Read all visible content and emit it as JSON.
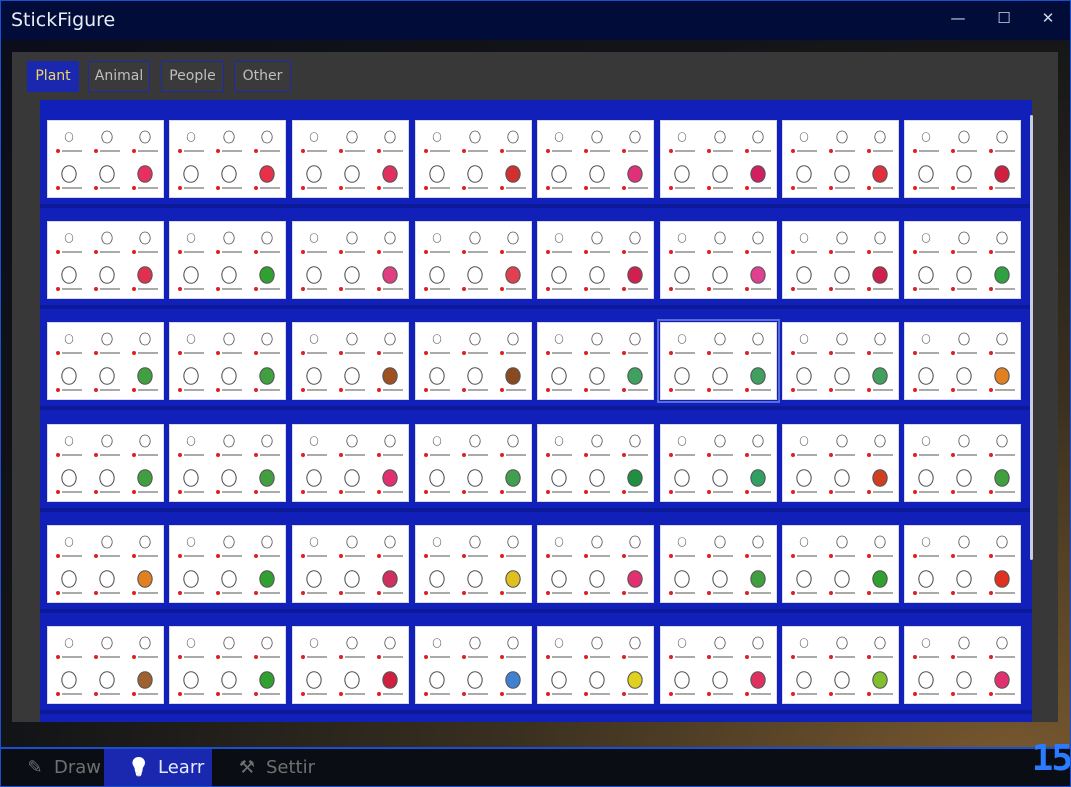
{
  "window": {
    "title": "StickFigure",
    "minimize_icon": "—",
    "maximize_icon": "☐",
    "close_icon": "✕"
  },
  "categories": [
    {
      "label": "Plant",
      "active": true
    },
    {
      "label": "Animal",
      "active": false
    },
    {
      "label": "People",
      "active": false
    },
    {
      "label": "Other",
      "active": false
    }
  ],
  "grid": {
    "rows": 6,
    "columns": 8,
    "accent_colors": [
      "#e83060",
      "#e8304a",
      "#e03060",
      "#d03030",
      "#e0307a",
      "#d02060",
      "#e03040",
      "#d02040",
      "#e03050",
      "#30a030",
      "#e04080",
      "#e04050",
      "#d02050",
      "#e04090",
      "#d02050",
      "#30a040",
      "#40a040",
      "#40a040",
      "#a05020",
      "#8a4a20",
      "#40a060",
      "#40a060",
      "#40a060",
      "#e08020",
      "#40a040",
      "#40a040",
      "#e03070",
      "#40a050",
      "#209040",
      "#30a060",
      "#d04020",
      "#40a040",
      "#e08020",
      "#30a030",
      "#d03060",
      "#e0c020",
      "#e03070",
      "#40a040",
      "#30a030",
      "#e03020",
      "#a06030",
      "#30a030",
      "#d02040",
      "#4080d0",
      "#e0d020",
      "#e03060",
      "#80c030",
      "#e03070"
    ]
  },
  "nav": [
    {
      "label": "Draw",
      "icon": "pencil-icon",
      "glyph": "✎",
      "active": false
    },
    {
      "label": "Learr",
      "icon": "lightbulb-icon",
      "glyph": "💡",
      "active": true
    },
    {
      "label": "Settir",
      "icon": "tools-icon",
      "glyph": "⚒",
      "active": false
    }
  ],
  "clock": {
    "text": "15"
  }
}
